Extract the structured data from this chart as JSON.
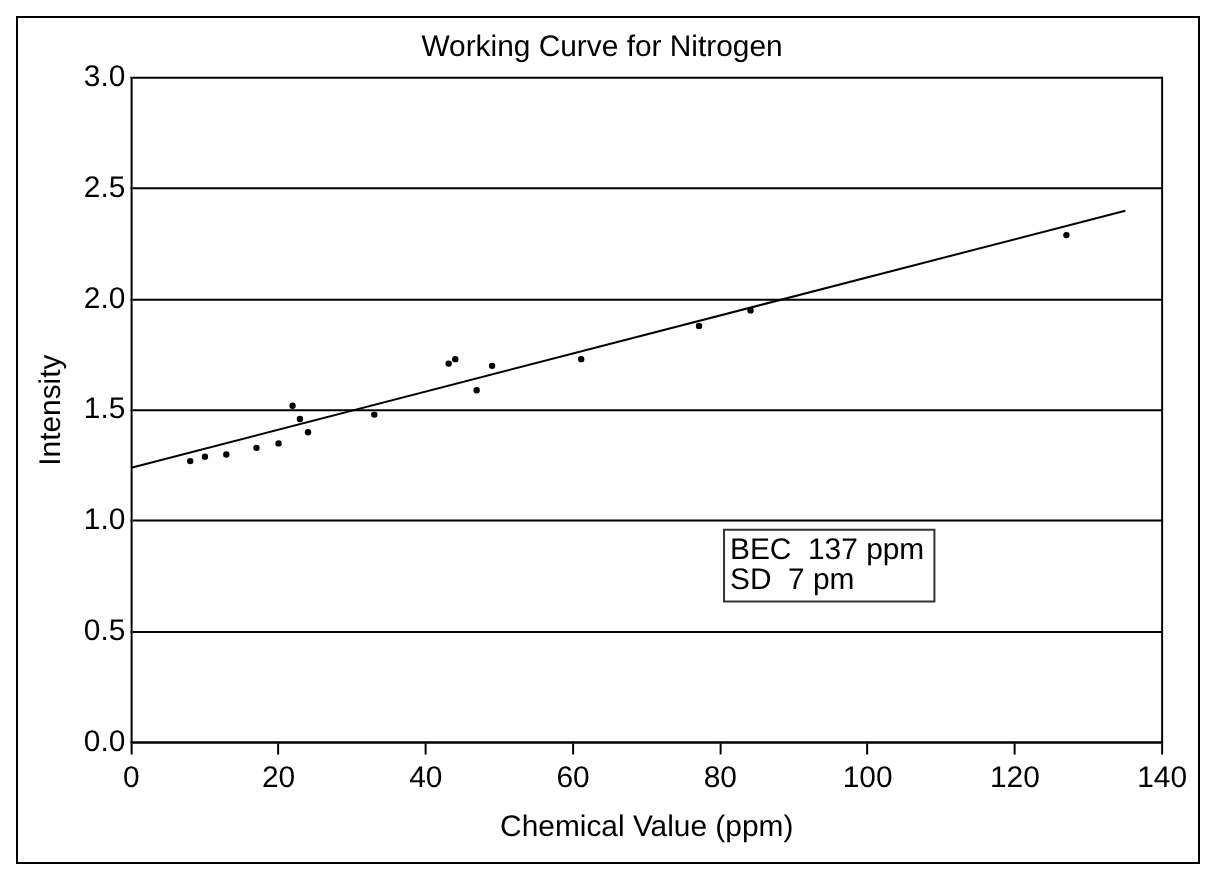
{
  "chart_data": {
    "type": "scatter",
    "title": "Working Curve for Nitrogen",
    "xlabel": "Chemical Value (ppm)",
    "ylabel": "Intensity",
    "xlim": [
      0,
      140
    ],
    "xticks": [
      0,
      20,
      40,
      60,
      80,
      100,
      120,
      140
    ],
    "ylim": [
      0,
      3
    ],
    "yticks": [
      {
        "value": 0,
        "label": "0.0"
      },
      {
        "value": 0.5,
        "label": "0.5"
      },
      {
        "value": 1,
        "label": "1.0"
      },
      {
        "value": 1.5,
        "label": "1.5"
      },
      {
        "value": 2,
        "label": "2.0"
      },
      {
        "value": 2.5,
        "label": "2.5"
      },
      {
        "value": 3,
        "label": "3.0"
      }
    ],
    "grid": "y",
    "legend": false,
    "series": [
      {
        "color": "#000000",
        "marker": "circle",
        "x": [
          8,
          10,
          12.9,
          17,
          20,
          21.9,
          22.9,
          24,
          33,
          43.1,
          44,
          46.9,
          49,
          61.1,
          77.1,
          84.1,
          127
        ],
        "values": [
          1.27,
          1.29,
          1.3,
          1.33,
          1.35,
          1.52,
          1.46,
          1.4,
          1.48,
          1.71,
          1.73,
          1.59,
          1.7,
          1.73,
          1.88,
          1.95,
          2.29
        ]
      },
      {
        "type": "line",
        "color": "#000000",
        "marker": "none",
        "x": [
          0,
          135
        ],
        "values": [
          1.24,
          2.4
        ]
      }
    ],
    "annotations": [
      "BEC  137 ppm",
      "SD  7 pm"
    ]
  }
}
